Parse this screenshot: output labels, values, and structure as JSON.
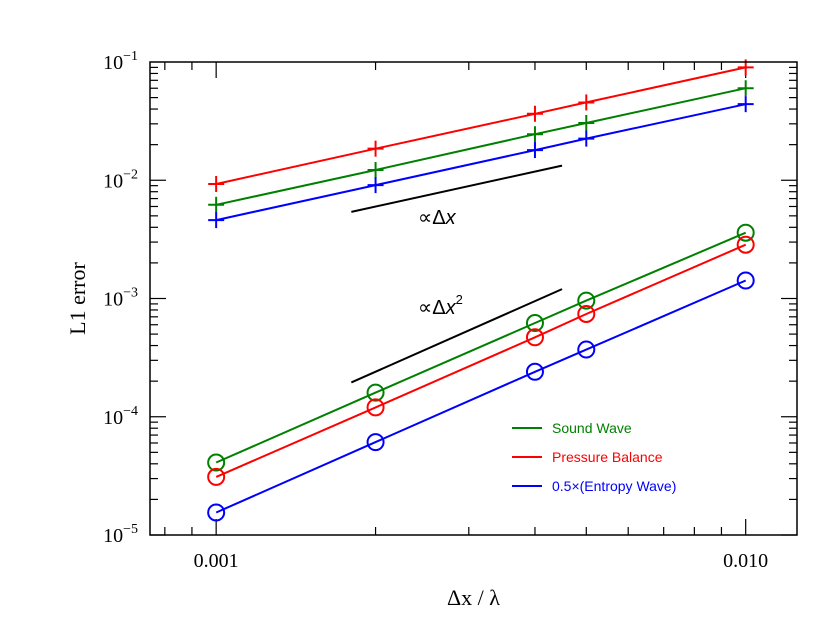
{
  "chart_data": {
    "type": "line",
    "title": "",
    "xlabel": "Δx / λ",
    "ylabel": "L1 error",
    "xscale": "log",
    "yscale": "log",
    "xlim": [
      0.00075,
      0.0125
    ],
    "ylim": [
      1e-05,
      0.1
    ],
    "x_ticks": [
      {
        "value": 0.001,
        "label": "0.001"
      },
      {
        "value": 0.01,
        "label": "0.010"
      }
    ],
    "y_ticks": [
      {
        "value": 1e-05,
        "base": "10",
        "exp": "−5"
      },
      {
        "value": 0.0001,
        "base": "10",
        "exp": "−4"
      },
      {
        "value": 0.001,
        "base": "10",
        "exp": "−3"
      },
      {
        "value": 0.01,
        "base": "10",
        "exp": "−2"
      },
      {
        "value": 0.1,
        "base": "10",
        "exp": "−1"
      }
    ],
    "x": [
      0.001,
      0.002,
      0.004,
      0.005,
      0.01
    ],
    "series": [
      {
        "name": "Sound Wave (+)",
        "color": "#008000",
        "marker": "plus",
        "values": [
          0.0062,
          0.0122,
          0.0245,
          0.0305,
          0.06
        ]
      },
      {
        "name": "Pressure Balance (+)",
        "color": "#ff0000",
        "marker": "plus",
        "values": [
          0.0093,
          0.0185,
          0.0365,
          0.0455,
          0.09
        ]
      },
      {
        "name": "0.5×(Entropy Wave) (+)",
        "color": "#0000ff",
        "marker": "plus",
        "values": [
          0.0046,
          0.0091,
          0.018,
          0.0225,
          0.044
        ]
      },
      {
        "name": "Sound Wave",
        "color": "#008000",
        "marker": "circle",
        "values": [
          4.1e-05,
          0.00016,
          0.00062,
          0.00096,
          0.0036
        ]
      },
      {
        "name": "Pressure Balance",
        "color": "#ff0000",
        "marker": "circle",
        "values": [
          3.1e-05,
          0.00012,
          0.00047,
          0.00074,
          0.00285
        ]
      },
      {
        "name": "0.5×(Entropy Wave)",
        "color": "#0000ff",
        "marker": "circle",
        "values": [
          1.55e-05,
          6.1e-05,
          0.00024,
          0.00037,
          0.00142
        ]
      }
    ],
    "reference_lines": [
      {
        "label_prefix": "∝Δ",
        "label_var": "x",
        "label_sup": "",
        "x": [
          0.0018,
          0.0045
        ],
        "y": [
          0.0054,
          0.0133
        ]
      },
      {
        "label_prefix": "∝Δ",
        "label_var": "x",
        "label_sup": "2",
        "x": [
          0.0018,
          0.0045
        ],
        "y": [
          0.000195,
          0.0012
        ]
      }
    ],
    "legend": {
      "position": "lower-right",
      "entries": [
        {
          "label": "Sound Wave",
          "color": "#008000"
        },
        {
          "label": "Pressure Balance",
          "color": "#ff0000"
        },
        {
          "label": "0.5×(Entropy Wave)",
          "color": "#0000ff"
        }
      ]
    }
  }
}
